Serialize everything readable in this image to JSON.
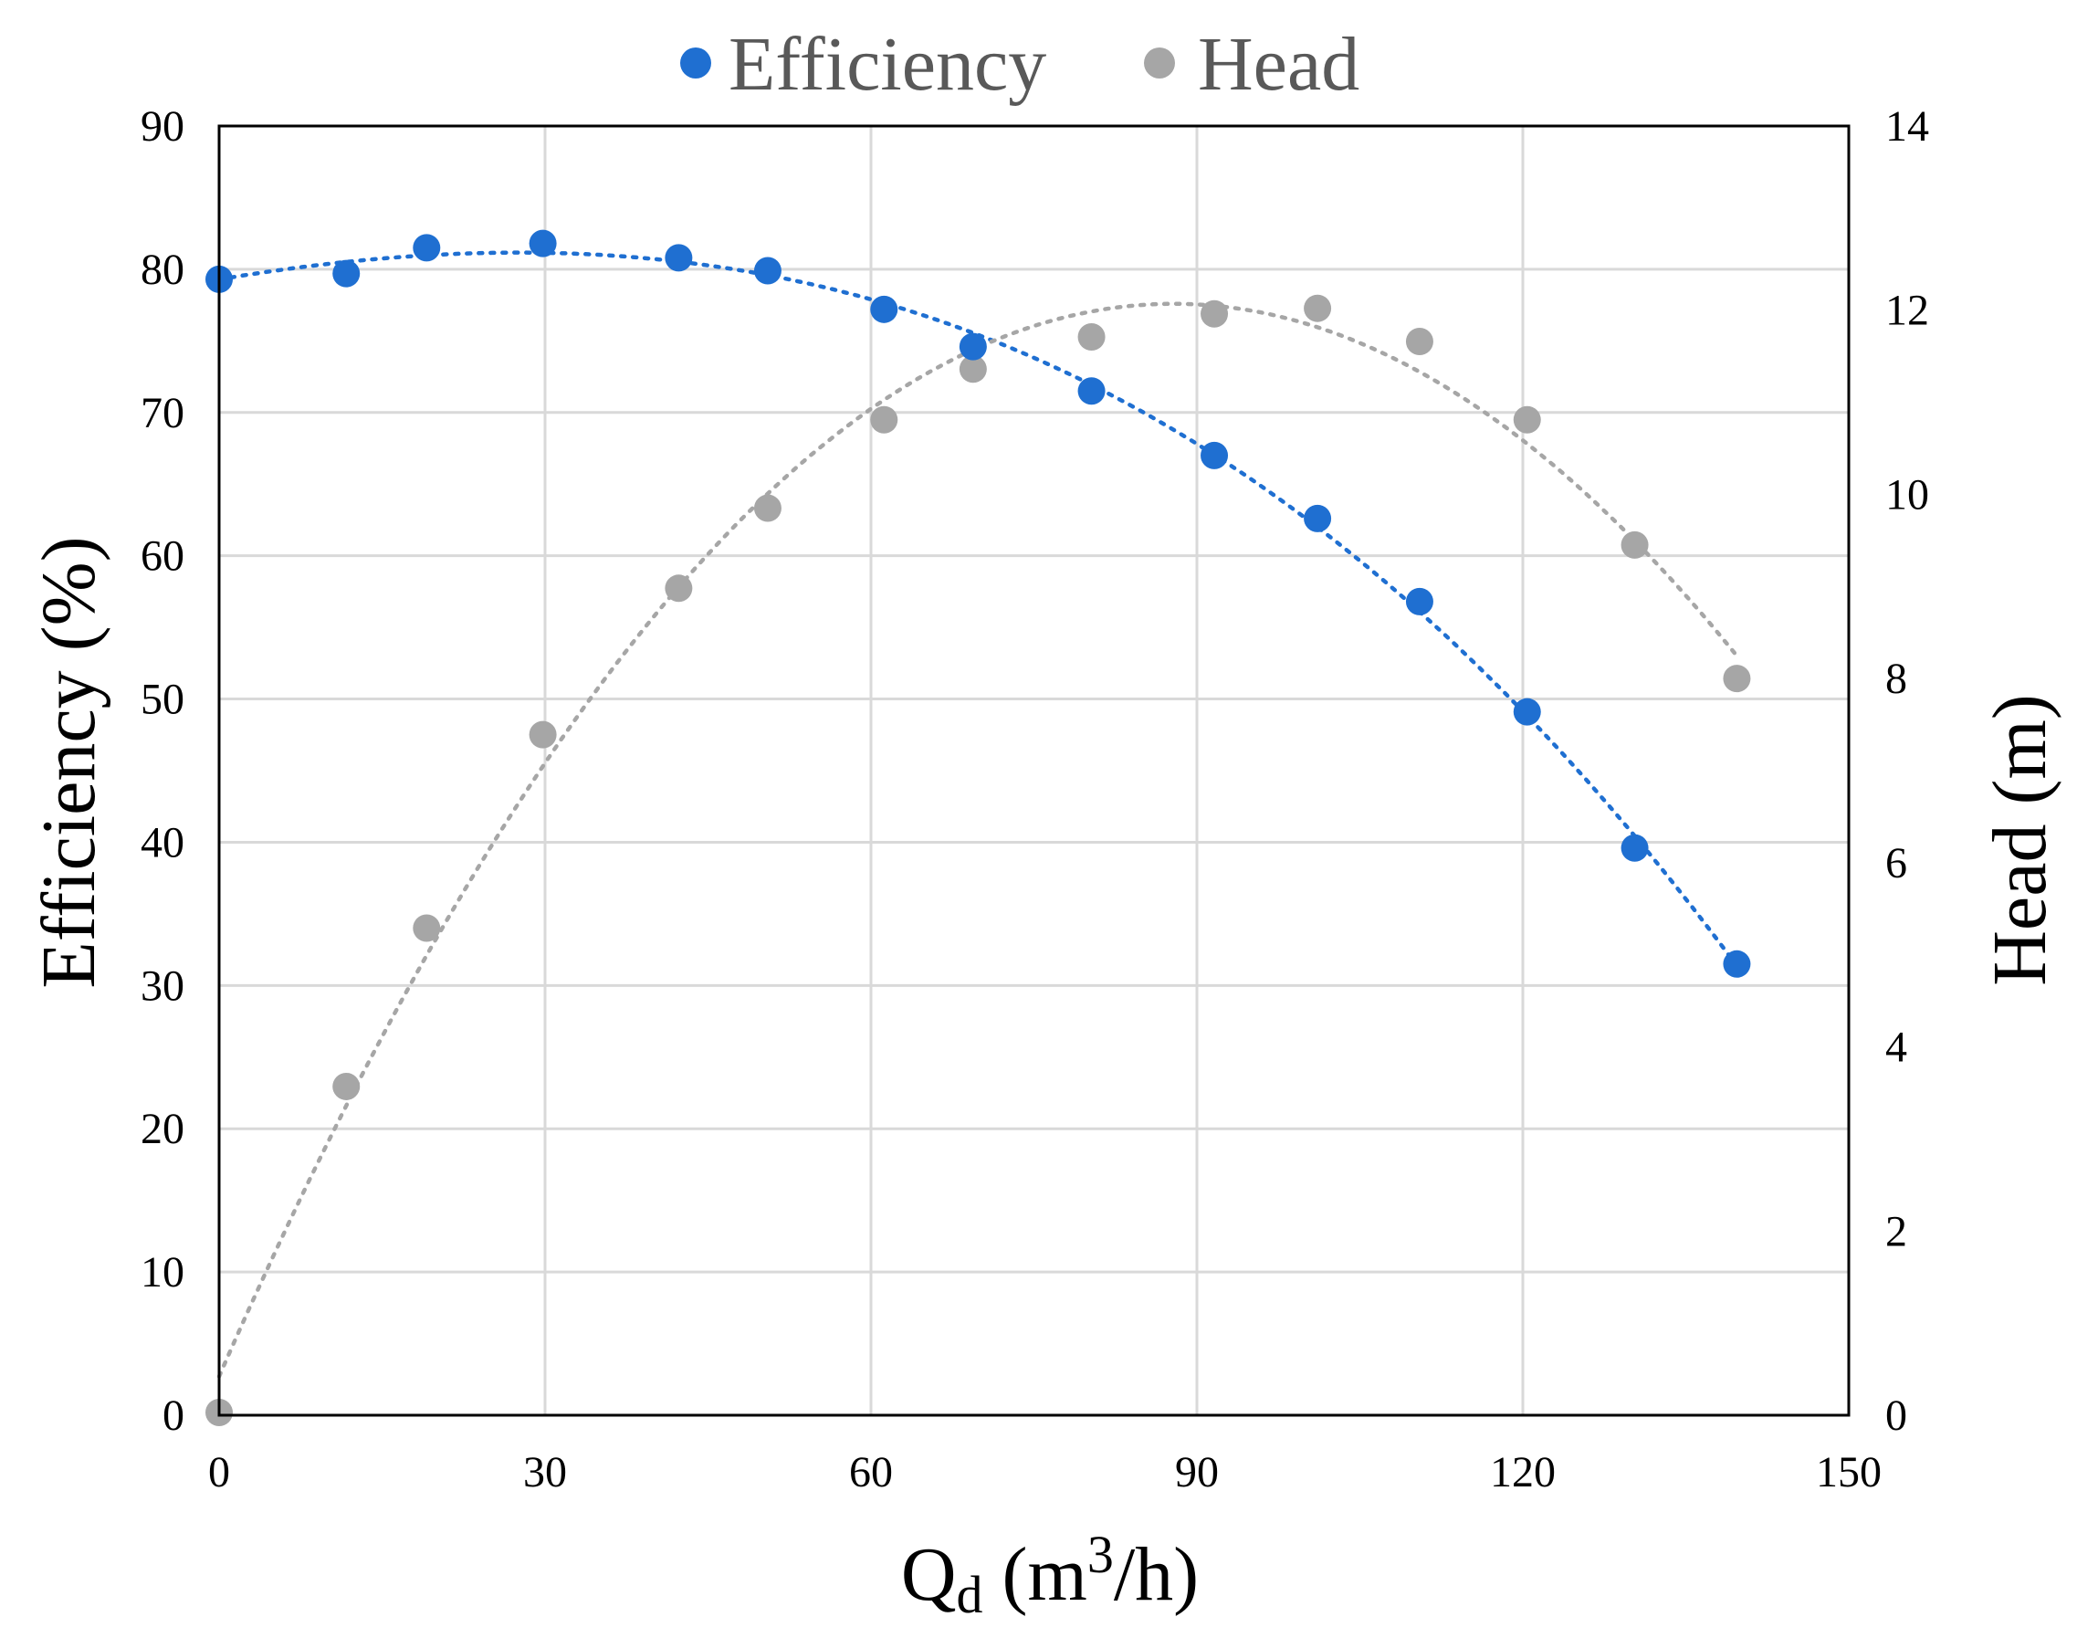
{
  "chart_data": {
    "type": "scatter",
    "title": "",
    "legend": {
      "placement": "top-center",
      "entries": [
        "Efficiency",
        "Head"
      ]
    },
    "x": {
      "label_main": "Q",
      "label_sub": "d",
      "label_unit_open": " (m",
      "label_sup": "3",
      "label_unit_close": "/h)",
      "range": [
        0,
        150
      ],
      "ticks": [
        0,
        30,
        60,
        90,
        120,
        150
      ],
      "tick_labels": [
        "0",
        "30",
        "60",
        "90",
        "120",
        "150"
      ]
    },
    "y_left": {
      "label": "Efficiency (%)",
      "range": [
        0,
        90
      ],
      "ticks": [
        0,
        10,
        20,
        30,
        40,
        50,
        60,
        70,
        80,
        90
      ],
      "tick_labels": [
        "0",
        "10",
        "20",
        "30",
        "40",
        "50",
        "60",
        "70",
        "80",
        "90"
      ]
    },
    "y_right": {
      "label": "Head (m)",
      "range": [
        0,
        14
      ],
      "ticks": [
        0,
        2,
        4,
        6,
        8,
        10,
        12,
        14
      ],
      "tick_labels": [
        "0",
        "2",
        "4",
        "6",
        "8",
        "10",
        "12",
        "14"
      ]
    },
    "grid": true,
    "series": [
      {
        "name": "Efficiency",
        "axis": "left",
        "color": "#1f6fd1",
        "trendline": "dotted polynomial",
        "points": [
          [
            0,
            79.3
          ],
          [
            11.7,
            79.7
          ],
          [
            19.1,
            81.5
          ],
          [
            29.8,
            81.8
          ],
          [
            42.3,
            80.8
          ],
          [
            50.5,
            79.9
          ],
          [
            61.2,
            77.2
          ],
          [
            69.4,
            74.6
          ],
          [
            80.3,
            71.5
          ],
          [
            91.6,
            67.0
          ],
          [
            101.1,
            62.6
          ],
          [
            110.5,
            56.8
          ],
          [
            120.4,
            49.1
          ],
          [
            130.3,
            39.6
          ],
          [
            139.7,
            31.5
          ]
        ]
      },
      {
        "name": "Head",
        "axis": "right",
        "color": "#a6a6a6",
        "trendline": "dotted polynomial",
        "points": [
          [
            0,
            0.03
          ],
          [
            11.7,
            3.57
          ],
          [
            19.1,
            5.29
          ],
          [
            29.8,
            7.39
          ],
          [
            42.3,
            8.98
          ],
          [
            50.5,
            9.85
          ],
          [
            61.2,
            10.81
          ],
          [
            69.4,
            11.36
          ],
          [
            80.3,
            11.71
          ],
          [
            91.6,
            11.96
          ],
          [
            101.1,
            12.02
          ],
          [
            110.5,
            11.66
          ],
          [
            120.4,
            10.81
          ],
          [
            130.3,
            9.45
          ],
          [
            139.7,
            8.0
          ]
        ]
      }
    ]
  }
}
